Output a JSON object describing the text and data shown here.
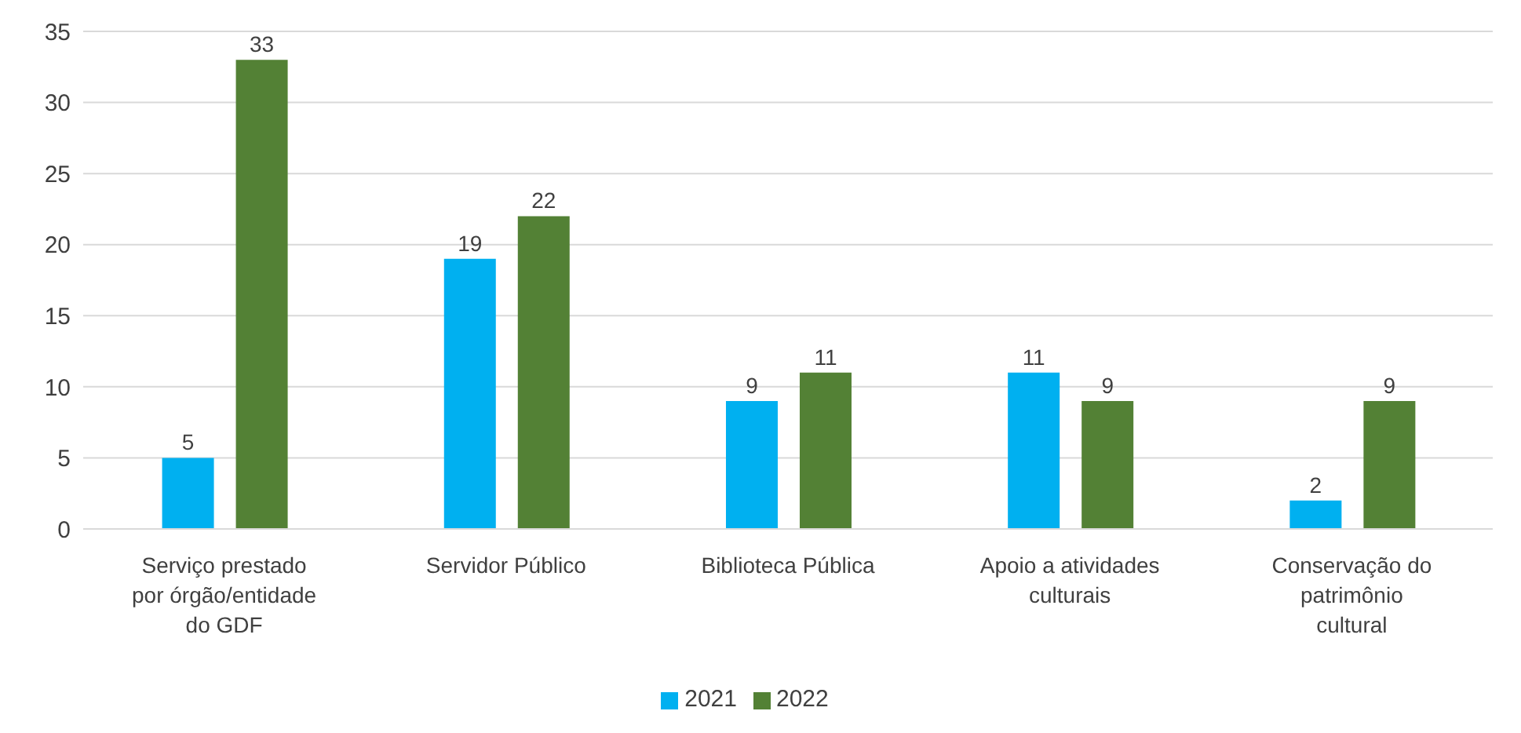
{
  "chart_data": {
    "type": "bar",
    "categories": [
      "Serviço prestado por órgão/entidade do GDF",
      "Servidor Público",
      "Biblioteca Pública",
      "Apoio a atividades culturais",
      "Conservação do patrimônio cultural"
    ],
    "series": [
      {
        "name": "2021",
        "color": "#00b0f0",
        "values": [
          5,
          19,
          9,
          11,
          2
        ]
      },
      {
        "name": "2022",
        "color": "#538135",
        "values": [
          33,
          22,
          11,
          9,
          9
        ]
      }
    ],
    "ylim": [
      0,
      35
    ],
    "yticks": [
      0,
      5,
      10,
      15,
      20,
      25,
      30,
      35
    ],
    "grid": "y",
    "legend": "bottom",
    "data_labels": true
  }
}
